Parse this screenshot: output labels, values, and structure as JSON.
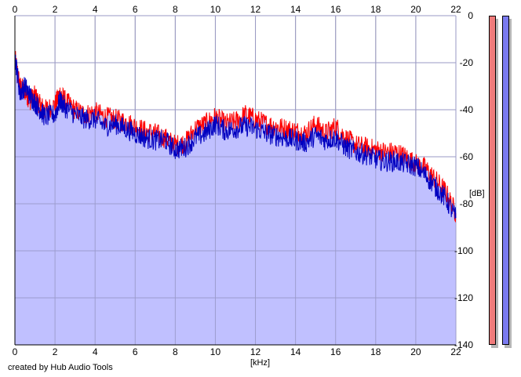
{
  "credit_text": "created by Hub Audio Tools",
  "meters": [
    {
      "name": "left-level-meter",
      "color": "#f07b7b"
    },
    {
      "name": "right-level-meter",
      "color": "#7b7bf0"
    }
  ],
  "chart_data": {
    "type": "line",
    "xlabel": "[kHz]",
    "ylabel": "[dB]",
    "xlim": [
      0,
      22
    ],
    "ylim": [
      -140,
      0
    ],
    "x_ticks": [
      0,
      2,
      4,
      6,
      8,
      10,
      12,
      14,
      16,
      18,
      20,
      22
    ],
    "y_ticks": [
      0,
      -20,
      -40,
      -60,
      -80,
      -100,
      -120,
      -140
    ],
    "grid": true,
    "fill_color": "#c0c0ff",
    "series": [
      {
        "color": "#ff0000",
        "x": [
          0,
          0.25,
          0.5,
          0.75,
          1.0,
          1.25,
          1.5,
          2.0,
          2.25,
          2.5,
          3.0,
          3.5,
          4.0,
          4.5,
          5.0,
          5.5,
          6.0,
          6.5,
          7.0,
          7.5,
          8.0,
          8.5,
          9.0,
          9.5,
          10.0,
          10.5,
          11.0,
          11.5,
          12.0,
          12.5,
          13.0,
          13.5,
          14.0,
          14.5,
          15.0,
          15.5,
          16.0,
          16.5,
          17.0,
          17.5,
          18.0,
          18.5,
          19.0,
          19.5,
          20.0,
          20.5,
          21.0,
          21.5,
          22.0
        ],
        "values": [
          -18,
          -30,
          -32,
          -36,
          -34,
          -38,
          -40,
          -38,
          -33,
          -36,
          -40,
          -42,
          -41,
          -43,
          -44,
          -45,
          -47,
          -49,
          -50,
          -52,
          -55,
          -54,
          -48,
          -46,
          -43,
          -46,
          -45,
          -42,
          -44,
          -46,
          -47,
          -48,
          -49,
          -50,
          -46,
          -50,
          -47,
          -52,
          -55,
          -56,
          -57,
          -58,
          -58,
          -60,
          -63,
          -65,
          -70,
          -75,
          -84
        ]
      },
      {
        "color": "#0000c0",
        "x": [
          0,
          0.25,
          0.5,
          0.75,
          1.0,
          1.25,
          1.5,
          2.0,
          2.25,
          2.5,
          3.0,
          3.5,
          4.0,
          4.5,
          5.0,
          5.5,
          6.0,
          6.5,
          7.0,
          7.5,
          8.0,
          8.5,
          9.0,
          9.5,
          10.0,
          10.5,
          11.0,
          11.5,
          12.0,
          12.5,
          13.0,
          13.5,
          14.0,
          14.5,
          15.0,
          15.5,
          16.0,
          16.5,
          17.0,
          17.5,
          18.0,
          18.5,
          19.0,
          19.5,
          20.0,
          20.5,
          21.0,
          21.5,
          22.0
        ],
        "values": [
          -17,
          -33,
          -30,
          -34,
          -37,
          -40,
          -43,
          -42,
          -36,
          -39,
          -42,
          -44,
          -44,
          -47,
          -46,
          -48,
          -50,
          -52,
          -53,
          -53,
          -57,
          -56,
          -52,
          -50,
          -46,
          -49,
          -48,
          -47,
          -48,
          -50,
          -51,
          -52,
          -53,
          -54,
          -51,
          -53,
          -52,
          -56,
          -58,
          -59,
          -61,
          -62,
          -62,
          -63,
          -64,
          -68,
          -73,
          -78,
          -86
        ]
      }
    ]
  }
}
